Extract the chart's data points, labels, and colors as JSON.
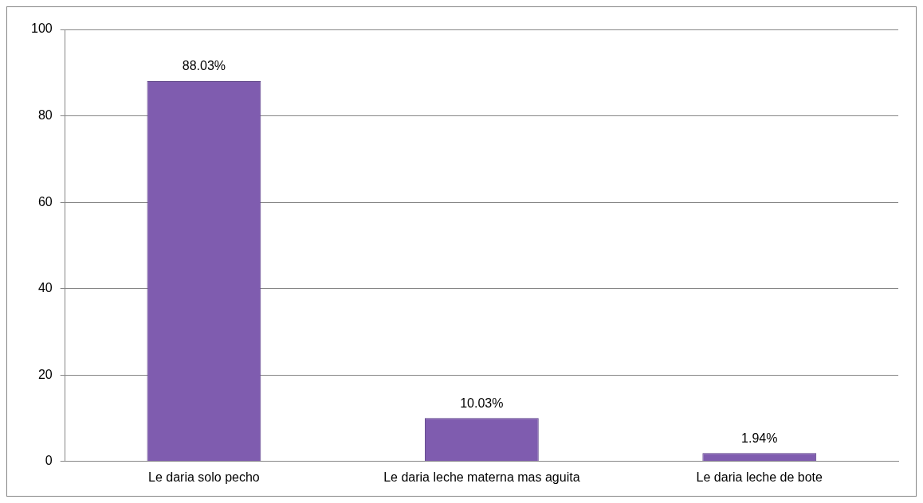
{
  "chart_data": {
    "type": "bar",
    "categories": [
      "Le daria solo pecho",
      "Le daria leche materna mas aguita",
      "Le daria leche de bote"
    ],
    "values": [
      88.03,
      10.03,
      1.94
    ],
    "value_labels": [
      "88.03%",
      "10.03%",
      "1.94%"
    ],
    "color": "#7f5caf",
    "ylim": [
      0,
      100
    ],
    "yticks": [
      0,
      20,
      40,
      60,
      80,
      100
    ],
    "grid": "y",
    "legend": false
  }
}
